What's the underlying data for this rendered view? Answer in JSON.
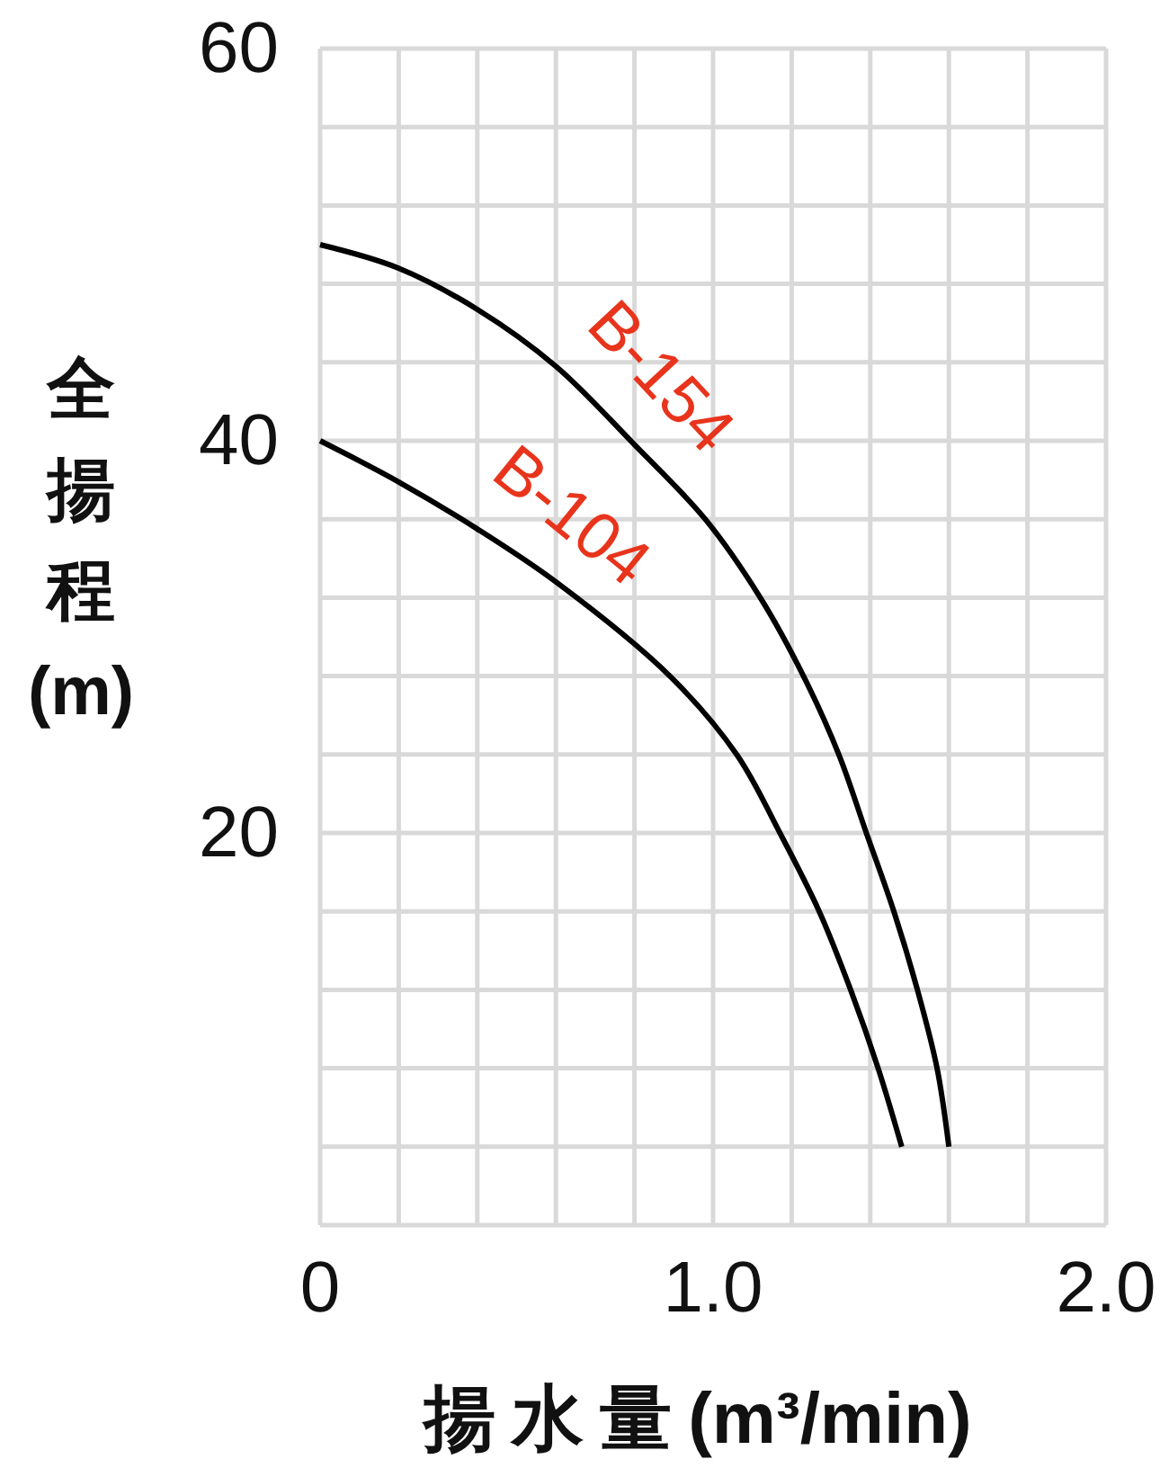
{
  "chart_data": {
    "type": "line",
    "xlabel": "揚水量(m³/min)",
    "ylabel": "全揚程(m)",
    "xlim": [
      0,
      2
    ],
    "ylim": [
      0,
      60
    ],
    "xticks": [
      {
        "value": 0,
        "label": "0"
      },
      {
        "value": 0.2,
        "label": null
      },
      {
        "value": 0.4,
        "label": null
      },
      {
        "value": 0.6,
        "label": null
      },
      {
        "value": 0.8,
        "label": null
      },
      {
        "value": 1,
        "label": "1.0"
      },
      {
        "value": 1.2,
        "label": null
      },
      {
        "value": 1.4,
        "label": null
      },
      {
        "value": 1.6,
        "label": null
      },
      {
        "value": 1.8,
        "label": null
      },
      {
        "value": 2,
        "label": "2.0"
      }
    ],
    "yticks": [
      {
        "value": 0,
        "label": null
      },
      {
        "value": 4,
        "label": null
      },
      {
        "value": 8,
        "label": null
      },
      {
        "value": 12,
        "label": null
      },
      {
        "value": 16,
        "label": null
      },
      20,
      {
        "value": 24,
        "label": null
      },
      {
        "value": 28,
        "label": null
      },
      {
        "value": 32,
        "label": null
      },
      {
        "value": 36,
        "label": null
      },
      40,
      {
        "value": 44,
        "label": null
      },
      {
        "value": 48,
        "label": null
      },
      {
        "value": 52,
        "label": null
      },
      {
        "value": 56,
        "label": null
      },
      60
    ],
    "grid": true,
    "series": [
      {
        "name": "B-154",
        "color": "#000000",
        "x": [
          0,
          0.2,
          0.4,
          0.6,
          0.8,
          0.98,
          1.12,
          1.23,
          1.32,
          1.39,
          1.46,
          1.52,
          1.57,
          1.6
        ],
        "values": [
          50,
          48.8,
          46.7,
          43.8,
          39.8,
          36,
          32,
          28,
          24,
          20,
          16,
          12,
          8,
          4
        ]
      },
      {
        "name": "B-104",
        "color": "#000000",
        "x": [
          0,
          0.2,
          0.4,
          0.6,
          0.89,
          1.06,
          1.17,
          1.27,
          1.35,
          1.42,
          1.48
        ],
        "values": [
          40,
          37.9,
          35.5,
          32.8,
          28,
          24,
          20,
          16,
          12,
          8,
          4
        ]
      }
    ]
  }
}
